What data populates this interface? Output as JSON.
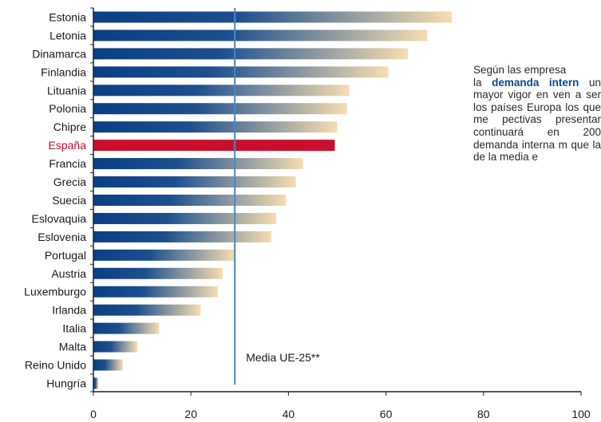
{
  "chart_data": {
    "type": "bar",
    "orientation": "horizontal",
    "categories": [
      "Estonia",
      "Letonia",
      "Dinamarca",
      "Finlandia",
      "Lituania",
      "Polonia",
      "Chipre",
      "España",
      "Francia",
      "Grecia",
      "Suecia",
      "Eslovaquia",
      "Eslovenia",
      "Portugal",
      "Austria",
      "Luxemburgo",
      "Irlanda",
      "Italia",
      "Malta",
      "Reino Unido",
      "Hungría"
    ],
    "values": [
      73.5,
      68.5,
      64.5,
      60.5,
      52.5,
      52,
      50,
      49.5,
      43,
      41.5,
      39.5,
      37.5,
      36.5,
      29,
      26.5,
      25.5,
      22,
      13.5,
      9,
      6,
      1
    ],
    "highlight": "España",
    "highlight_color": "#c8102e",
    "bar_gradient": [
      "#0a3f85",
      "#f6ddb0"
    ],
    "xlim": [
      0,
      100
    ],
    "xticks": [
      0,
      20,
      40,
      60,
      80,
      100
    ],
    "grid": false,
    "reference_line": {
      "value": 29,
      "label": "Media UE-25**",
      "color": "#4d86c2"
    }
  },
  "side_text": {
    "lead": "Según las empresa",
    "highlight": "demanda intern",
    "pre": "la",
    "body": "un mayor vigor en ven a ser los países Europa los que me pectivas presentar continuará en 200 demanda interna m que la de la media e"
  }
}
